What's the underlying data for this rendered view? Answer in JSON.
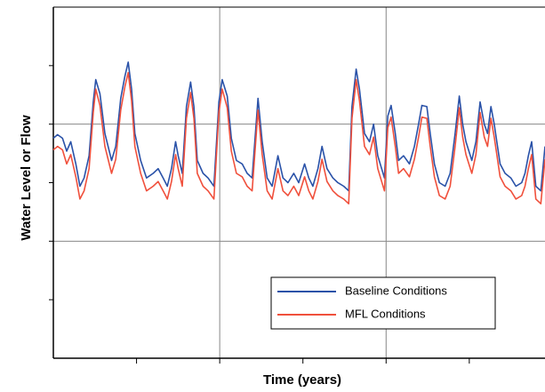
{
  "chart_data": {
    "type": "line",
    "x_label": "Time (years)",
    "y_label": "Water Level or Flow",
    "xlim": [
      0,
      5.91
    ],
    "ylim": [
      0,
      3
    ],
    "xticks": [
      1,
      2,
      3,
      4,
      5
    ],
    "yticks": [
      0.5,
      1,
      1.5,
      2,
      2.5
    ],
    "xgrid": [
      2,
      4
    ],
    "ygrid": [
      1,
      2
    ],
    "x": [
      0,
      0.05,
      0.11,
      0.16,
      0.21,
      0.27,
      0.32,
      0.37,
      0.43,
      0.48,
      0.51,
      0.56,
      0.62,
      0.7,
      0.75,
      0.81,
      0.86,
      0.9,
      0.94,
      0.98,
      1.05,
      1.12,
      1.2,
      1.26,
      1.32,
      1.37,
      1.42,
      1.47,
      1.5,
      1.55,
      1.6,
      1.65,
      1.69,
      1.73,
      1.8,
      1.86,
      1.93,
      1.99,
      2.03,
      2.09,
      2.14,
      2.2,
      2.27,
      2.33,
      2.39,
      2.46,
      2.51,
      2.57,
      2.63,
      2.7,
      2.76,
      2.82,
      2.89,
      2.95,
      3.02,
      3.07,
      3.12,
      3.18,
      3.23,
      3.29,
      3.36,
      3.42,
      3.49,
      3.55,
      3.59,
      3.64,
      3.68,
      3.74,
      3.8,
      3.85,
      3.9,
      3.98,
      4.02,
      4.06,
      4.11,
      4.15,
      4.21,
      4.28,
      4.34,
      4.39,
      4.43,
      4.49,
      4.53,
      4.58,
      4.64,
      4.71,
      4.77,
      4.83,
      4.88,
      4.92,
      4.96,
      5.03,
      5.08,
      5.13,
      5.18,
      5.22,
      5.26,
      5.3,
      5.37,
      5.43,
      5.5,
      5.56,
      5.63,
      5.67,
      5.71,
      5.75,
      5.8,
      5.86,
      5.91
    ],
    "series": [
      {
        "name": "Baseline Conditions",
        "color": "#2a52a8",
        "values": [
          1.88,
          1.91,
          1.88,
          1.77,
          1.85,
          1.66,
          1.47,
          1.54,
          1.73,
          2.19,
          2.38,
          2.26,
          1.92,
          1.69,
          1.81,
          2.22,
          2.41,
          2.53,
          2.3,
          1.92,
          1.69,
          1.54,
          1.58,
          1.62,
          1.54,
          1.47,
          1.62,
          1.85,
          1.73,
          1.58,
          2.15,
          2.36,
          2.15,
          1.69,
          1.58,
          1.54,
          1.47,
          2.19,
          2.38,
          2.24,
          1.88,
          1.69,
          1.66,
          1.58,
          1.54,
          2.22,
          1.85,
          1.54,
          1.47,
          1.73,
          1.54,
          1.5,
          1.58,
          1.5,
          1.66,
          1.54,
          1.47,
          1.62,
          1.81,
          1.62,
          1.54,
          1.5,
          1.47,
          1.43,
          2.15,
          2.47,
          2.3,
          1.92,
          1.85,
          2.0,
          1.73,
          1.54,
          2.07,
          2.16,
          1.92,
          1.69,
          1.73,
          1.66,
          1.81,
          2.0,
          2.16,
          2.15,
          1.92,
          1.66,
          1.5,
          1.47,
          1.58,
          1.92,
          2.24,
          2.0,
          1.85,
          1.69,
          1.85,
          2.19,
          2.0,
          1.92,
          2.15,
          2.0,
          1.66,
          1.58,
          1.54,
          1.47,
          1.5,
          1.58,
          1.73,
          1.85,
          1.47,
          1.43,
          1.81
        ]
      },
      {
        "name": "MFL Conditions",
        "color": "#f0503c",
        "values": [
          1.78,
          1.81,
          1.78,
          1.66,
          1.74,
          1.55,
          1.36,
          1.43,
          1.62,
          2.1,
          2.3,
          2.16,
          1.81,
          1.58,
          1.7,
          2.12,
          2.32,
          2.44,
          2.2,
          1.81,
          1.58,
          1.43,
          1.47,
          1.51,
          1.43,
          1.36,
          1.51,
          1.74,
          1.62,
          1.47,
          2.05,
          2.27,
          2.05,
          1.58,
          1.47,
          1.43,
          1.36,
          2.1,
          2.3,
          2.14,
          1.77,
          1.58,
          1.55,
          1.47,
          1.43,
          2.12,
          1.74,
          1.43,
          1.36,
          1.62,
          1.43,
          1.39,
          1.47,
          1.39,
          1.55,
          1.43,
          1.36,
          1.51,
          1.7,
          1.51,
          1.43,
          1.39,
          1.36,
          1.32,
          2.05,
          2.38,
          2.2,
          1.81,
          1.74,
          1.89,
          1.62,
          1.43,
          1.97,
          2.06,
          1.81,
          1.58,
          1.62,
          1.55,
          1.7,
          1.89,
          2.06,
          2.05,
          1.81,
          1.55,
          1.39,
          1.36,
          1.47,
          1.81,
          2.14,
          1.89,
          1.74,
          1.58,
          1.74,
          2.1,
          1.89,
          1.81,
          2.05,
          1.89,
          1.55,
          1.47,
          1.43,
          1.36,
          1.39,
          1.47,
          1.62,
          1.74,
          1.36,
          1.32,
          1.7
        ]
      }
    ]
  }
}
